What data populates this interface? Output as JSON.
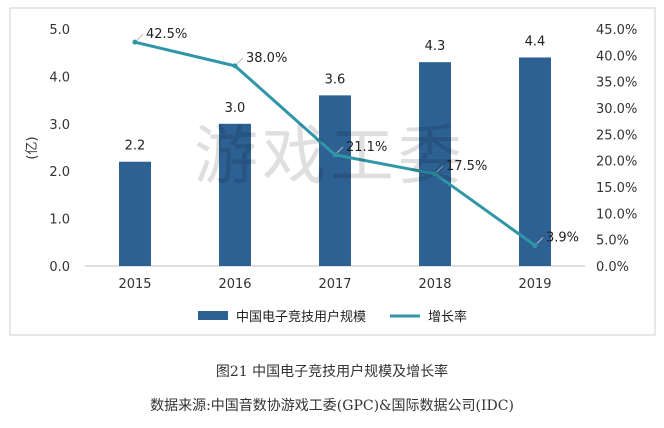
{
  "chart_data": {
    "type": "bar",
    "categories": [
      "2015",
      "2016",
      "2017",
      "2018",
      "2019"
    ],
    "series": [
      {
        "name": "中国电子竞技用户规模",
        "type": "bar",
        "axis": "left",
        "values": [
          2.2,
          3.0,
          3.6,
          4.3,
          4.4
        ],
        "labels": [
          "2.2",
          "3.0",
          "3.6",
          "4.3",
          "4.4"
        ],
        "color": "#2d6093"
      },
      {
        "name": "增长率",
        "type": "line",
        "axis": "right",
        "values": [
          42.5,
          38.0,
          21.1,
          17.5,
          3.9
        ],
        "labels": [
          "42.5%",
          "38.0%",
          "21.1%",
          "17.5%",
          "3.9%"
        ],
        "color": "#2f96a8"
      }
    ],
    "ylabel": "(亿)",
    "ylim": [
      0,
      5
    ],
    "yticks": [
      "0.0",
      "1.0",
      "2.0",
      "3.0",
      "4.0",
      "5.0"
    ],
    "y2lim": [
      0,
      45
    ],
    "y2ticks": [
      "0.0%",
      "5.0%",
      "10.0%",
      "15.0%",
      "20.0%",
      "25.0%",
      "30.0%",
      "35.0%",
      "40.0%",
      "45.0%"
    ],
    "legend_position": "bottom",
    "grid": false
  },
  "caption": {
    "title": "图21  中国电子竞技用户规模及增长率",
    "source": "数据来源:中国音数协游戏工委(GPC)&国际数据公司(IDC)"
  },
  "watermark": "游戏工委",
  "colors": {
    "frame": "#cfcfcf",
    "axis": "#bfbfbf"
  }
}
